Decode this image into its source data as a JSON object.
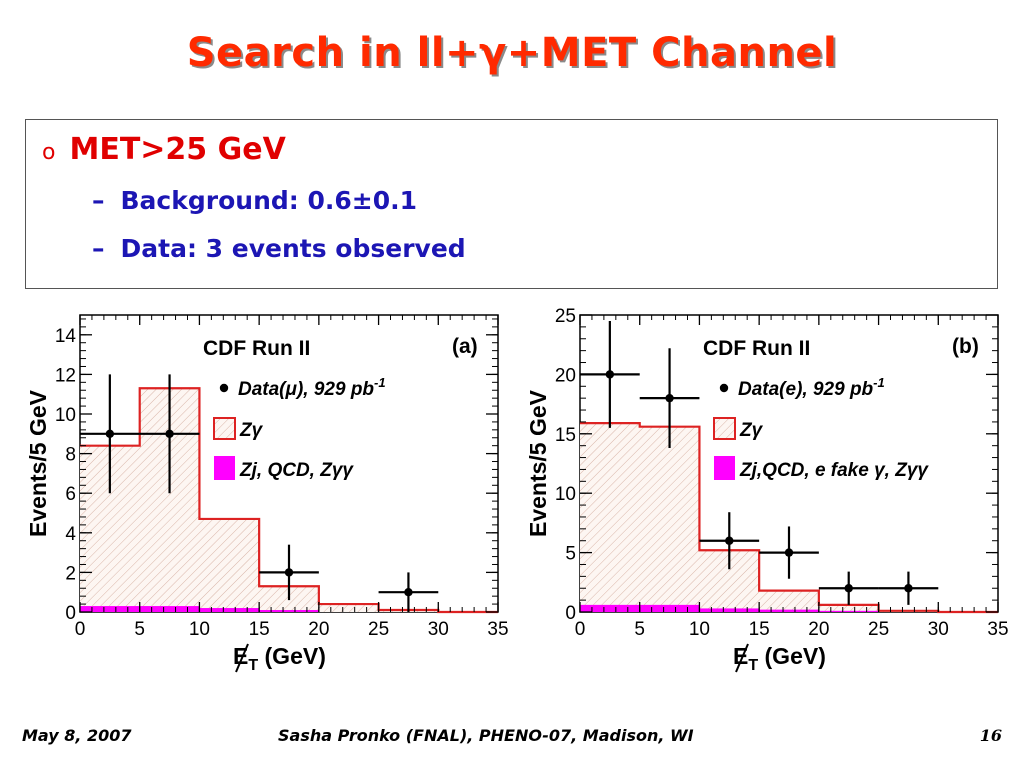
{
  "slide": {
    "title": "Search in ll+γ+MET Channel",
    "bullet_marker": "o",
    "bullet": "MET>25 GeV",
    "sub_dash": "–",
    "sub1": "Background: 0.6±0.1",
    "sub2": "Data: 3 events observed",
    "footer_left": "May 8, 2007",
    "footer_center": "Sasha Pronko (FNAL), PHENO-07, Madison, WI",
    "footer_right": "16"
  },
  "chart_data": [
    {
      "type": "histogram",
      "panel_label": "(a)",
      "title": "CDF Run II",
      "xlabel": "E̸T (GeV)",
      "ylabel": "Events/5 GeV",
      "xlim": [
        0,
        35
      ],
      "ylim": [
        0,
        15
      ],
      "xticks": [
        0,
        5,
        10,
        15,
        20,
        25,
        30,
        35
      ],
      "yticks": [
        0,
        2,
        4,
        6,
        8,
        10,
        12,
        14
      ],
      "bin_edges": [
        0,
        5,
        10,
        15,
        20,
        25,
        30,
        35
      ],
      "legend": [
        "Data(μ), 929 pb-1",
        "Zγ",
        "Zj, QCD, Zγγ"
      ],
      "series": [
        {
          "name": "Zγ",
          "values": [
            8.4,
            11.3,
            4.7,
            1.3,
            0.4,
            0.1,
            0.0
          ],
          "color": "#dd2222"
        },
        {
          "name": "Zj, QCD, Zγγ",
          "values": [
            0.3,
            0.3,
            0.2,
            0.1,
            0.0,
            0.0,
            0.0
          ],
          "color": "#ff00ff"
        },
        {
          "name": "Data(μ), 929 pb-1",
          "x": [
            2.5,
            7.5,
            17.5,
            27.5
          ],
          "y": [
            9,
            9,
            2,
            1
          ],
          "yerr": [
            3.0,
            3.0,
            1.4,
            1.0
          ],
          "xerr": 2.5
        }
      ]
    },
    {
      "type": "histogram",
      "panel_label": "(b)",
      "title": "CDF Run II",
      "xlabel": "E̸T (GeV)",
      "ylabel": "Events/5 GeV",
      "xlim": [
        0,
        35
      ],
      "ylim": [
        0,
        25
      ],
      "xticks": [
        0,
        5,
        10,
        15,
        20,
        25,
        30,
        35
      ],
      "yticks": [
        0,
        5,
        10,
        15,
        20,
        25
      ],
      "bin_edges": [
        0,
        5,
        10,
        15,
        20,
        25,
        30,
        35
      ],
      "legend": [
        "Data(e), 929 pb-1",
        "Zγ",
        "Zj,QCD, e fake γ, Zγγ"
      ],
      "series": [
        {
          "name": "Zγ",
          "values": [
            15.9,
            15.6,
            5.2,
            1.8,
            0.6,
            0.1,
            0.0
          ],
          "color": "#dd2222"
        },
        {
          "name": "Zj,QCD, e fake γ, Zγγ",
          "values": [
            0.6,
            0.6,
            0.3,
            0.2,
            0.1,
            0.0,
            0.0
          ],
          "color": "#ff00ff"
        },
        {
          "name": "Data(e), 929 pb-1",
          "x": [
            2.5,
            7.5,
            12.5,
            17.5,
            22.5,
            27.5
          ],
          "y": [
            20,
            18,
            6,
            5,
            2,
            2
          ],
          "yerr": [
            4.5,
            4.2,
            2.4,
            2.2,
            1.4,
            1.4
          ],
          "xerr": 2.5
        }
      ]
    }
  ]
}
